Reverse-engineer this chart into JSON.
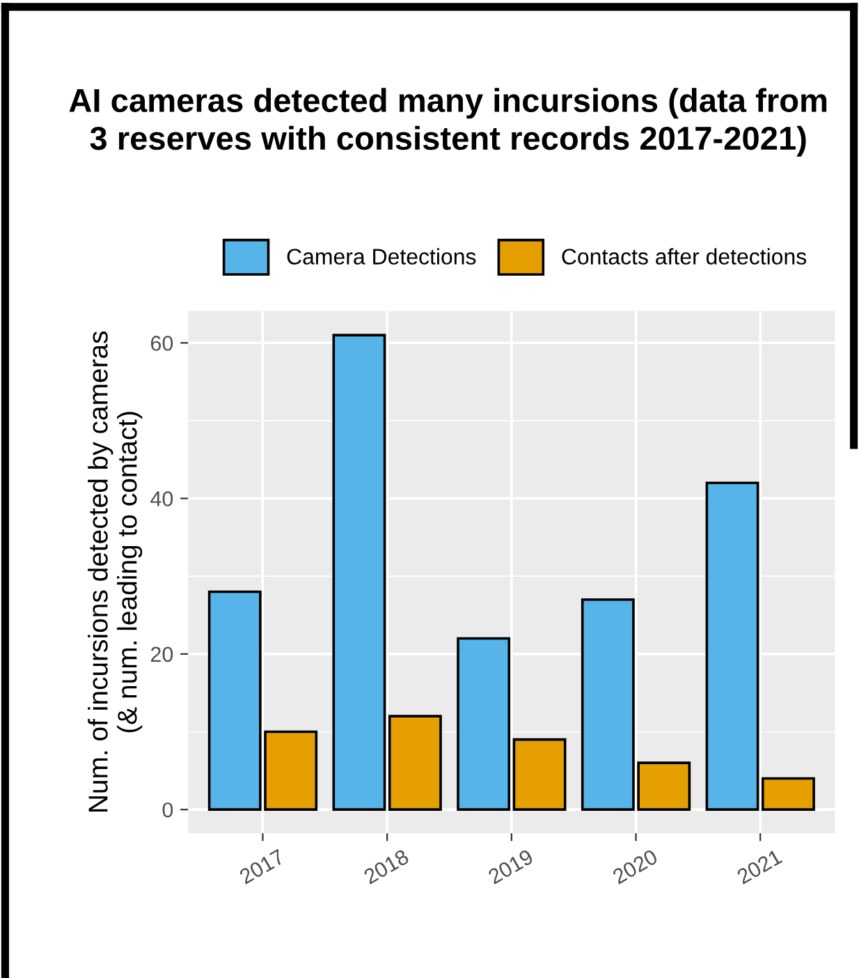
{
  "chart_data": {
    "type": "bar",
    "title": "AI cameras detected many incursions (data from\n3 reserves with consistent records 2017-2021)",
    "ylabel": "Num. of incursions detected by cameras\n(& num. leading to contact)",
    "categories": [
      "2017",
      "2018",
      "2019",
      "2020",
      "2021"
    ],
    "series": [
      {
        "name": "Camera Detections",
        "color": "#56b4e9",
        "values": [
          28,
          61,
          22,
          27,
          42
        ]
      },
      {
        "name": "Contacts after detections",
        "color": "#e69f00",
        "values": [
          10,
          12,
          9,
          6,
          4
        ]
      }
    ],
    "ylim": [
      -3.05,
      64.1
    ],
    "yticks": [
      0,
      20,
      40,
      60
    ],
    "grid": true,
    "legend": "top"
  }
}
